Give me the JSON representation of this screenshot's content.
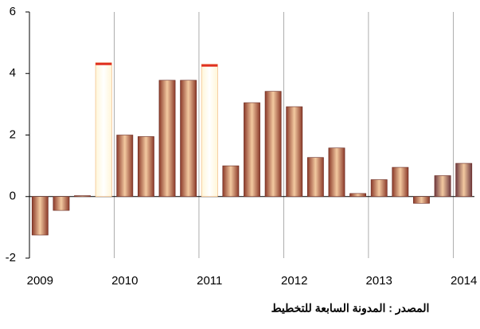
{
  "chart_data": {
    "type": "bar",
    "categories": [
      "2009",
      null,
      null,
      null,
      "2010",
      null,
      null,
      null,
      "2011",
      null,
      null,
      null,
      "2012",
      null,
      null,
      null,
      "2013",
      null,
      null,
      null,
      "2014"
    ],
    "values": [
      -1.25,
      -0.45,
      0.03,
      4.35,
      2.0,
      1.95,
      3.78,
      3.78,
      4.3,
      1.0,
      3.05,
      3.42,
      2.92,
      1.27,
      1.58,
      0.1,
      0.55,
      0.95,
      -0.22,
      0.68,
      1.08
    ],
    "colors": [
      "#8b3a2a",
      "#8b3a2a",
      "#8b3a2a",
      "#fff6d8",
      "#8b3a2a",
      "#8b3a2a",
      "#8b3a2a",
      "#8b3a2a",
      "#fff6d8",
      "#8b3a2a",
      "#8b3a2a",
      "#8b3a2a",
      "#8b3a2a",
      "#8b3a2a",
      "#8b3a2a",
      "#8b3a2a",
      "#8b3a2a",
      "#8b3a2a",
      "#8b3a2a",
      "#6e3a40",
      "#6e3a40"
    ],
    "ylim": [
      -2,
      6
    ],
    "yticks": [
      -2,
      0,
      2,
      4,
      6
    ],
    "grid": true,
    "source": "المصدر : المدونة السابعة للتخطيط"
  }
}
